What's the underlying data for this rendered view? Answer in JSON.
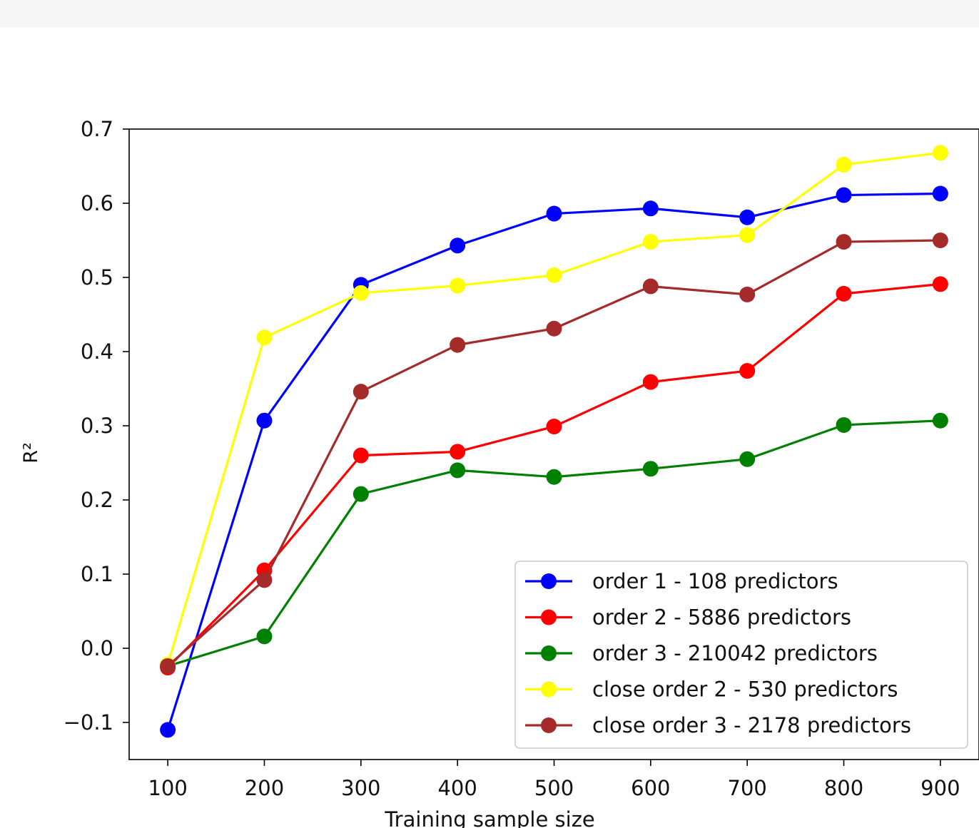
{
  "chart_data": {
    "type": "line",
    "title": "",
    "xlabel": "Training sample size",
    "ylabel": "R²",
    "xlim": [
      60,
      940
    ],
    "ylim": [
      -0.15,
      0.7
    ],
    "x": [
      100,
      200,
      300,
      400,
      500,
      600,
      700,
      800,
      900
    ],
    "xticks": [
      100,
      200,
      300,
      400,
      500,
      600,
      700,
      800,
      900
    ],
    "xtick_labels": [
      "100",
      "200",
      "300",
      "400",
      "500",
      "600",
      "700",
      "800",
      "900"
    ],
    "yticks": [
      -0.1,
      0.0,
      0.1,
      0.2,
      0.3,
      0.4,
      0.5,
      0.6,
      0.7
    ],
    "ytick_labels": [
      "−0.1",
      "0.0",
      "0.1",
      "0.2",
      "0.3",
      "0.4",
      "0.5",
      "0.6",
      "0.7"
    ],
    "grid": false,
    "legend_position": "bottom-right",
    "series": [
      {
        "name": "order 1 - 108 predictors",
        "color": "#0000ff",
        "values": [
          -0.11,
          0.307,
          0.49,
          0.543,
          0.586,
          0.593,
          0.581,
          0.611,
          0.613
        ]
      },
      {
        "name": "order 2 - 5886 predictors",
        "color": "#ff0000",
        "values": [
          -0.026,
          0.105,
          0.26,
          0.265,
          0.299,
          0.359,
          0.374,
          0.478,
          0.491
        ]
      },
      {
        "name": "order 3 - 210042 predictors",
        "color": "#008000",
        "values": [
          -0.024,
          0.016,
          0.208,
          0.24,
          0.231,
          0.242,
          0.255,
          0.301,
          0.307
        ]
      },
      {
        "name": "close order 2 - 530 predictors",
        "color": "#ffff00",
        "values": [
          -0.022,
          0.419,
          0.479,
          0.489,
          0.503,
          0.548,
          0.557,
          0.652,
          0.668
        ]
      },
      {
        "name": "close order 3 - 2178 predictors",
        "color": "#a52a2a",
        "values": [
          -0.024,
          0.092,
          0.346,
          0.409,
          0.431,
          0.488,
          0.477,
          0.548,
          0.55
        ]
      }
    ]
  }
}
